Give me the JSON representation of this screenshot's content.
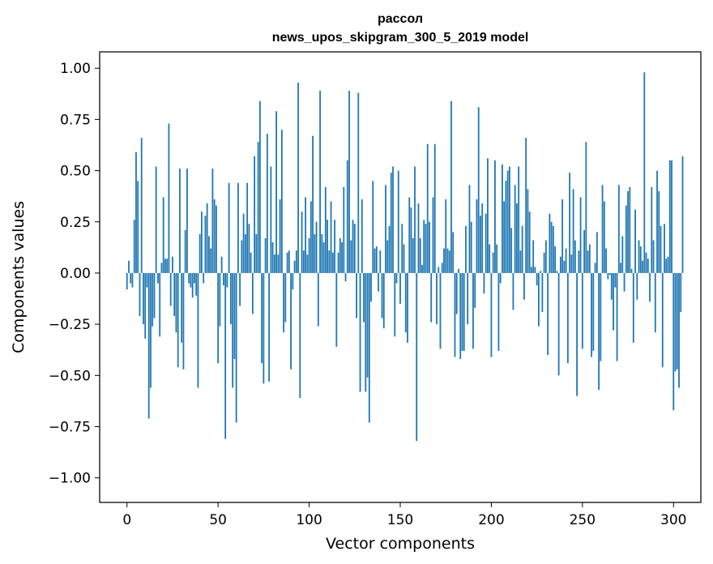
{
  "chart_data": {
    "type": "bar",
    "title_line1": "рассол",
    "title_line2": "news_upos_skipgram_300_5_2019 model",
    "xlabel": "Vector components",
    "ylabel": "Components values",
    "xlim": [
      -15,
      315
    ],
    "ylim": [
      -1.12,
      1.08
    ],
    "xticks": [
      0,
      50,
      100,
      150,
      200,
      250,
      300
    ],
    "xtick_labels": [
      "0",
      "50",
      "100",
      "150",
      "200",
      "250",
      "300"
    ],
    "yticks": [
      1.0,
      0.75,
      0.5,
      0.25,
      0.0,
      -0.25,
      -0.5,
      -0.75,
      -1.0
    ],
    "ytick_labels": [
      "1.00",
      "0.75",
      "0.50",
      "0.25",
      "0.00",
      "−0.25",
      "−0.50",
      "−0.75",
      "−1.00"
    ],
    "bar_color": "#1f77b4",
    "values": [
      -0.08,
      0.06,
      -0.05,
      -0.07,
      0.26,
      0.59,
      0.45,
      -0.21,
      0.66,
      -0.25,
      -0.32,
      -0.07,
      -0.71,
      -0.56,
      -0.26,
      -0.22,
      0.52,
      -0.05,
      -0.31,
      0.05,
      0.37,
      0.07,
      0.07,
      0.73,
      -0.16,
      0.08,
      -0.21,
      -0.29,
      -0.46,
      0.51,
      -0.34,
      -0.47,
      0.21,
      0.51,
      -0.05,
      -0.07,
      -0.12,
      -0.05,
      -0.11,
      -0.56,
      0.19,
      0.3,
      -0.05,
      0.28,
      0.34,
      0.18,
      0.12,
      0.51,
      0.36,
      0.33,
      -0.44,
      -0.26,
      0.08,
      -0.06,
      -0.81,
      -0.07,
      0.44,
      -0.25,
      -0.56,
      -0.42,
      -0.73,
      0.44,
      -0.16,
      0.16,
      0.29,
      0.19,
      0.44,
      0.24,
      0.1,
      -0.2,
      0.57,
      0.19,
      0.64,
      0.84,
      -0.44,
      -0.54,
      0.17,
      0.68,
      -0.53,
      0.52,
      0.15,
      0.09,
      0.79,
      0.09,
      0.36,
      0.7,
      -0.29,
      -0.24,
      0.1,
      0.11,
      -0.47,
      -0.08,
      0.06,
      0.11,
      0.93,
      -0.61,
      0.3,
      0.11,
      0.37,
      0.09,
      0.17,
      0.35,
      0.67,
      0.19,
      0.25,
      -0.26,
      0.89,
      0.19,
      0.15,
      0.42,
      0.26,
      0.11,
      0.35,
      0.1,
      0.26,
      -0.36,
      0.1,
      0.17,
      0.15,
      0.42,
      -0.04,
      0.55,
      0.89,
      0.16,
      0.26,
      0.24,
      -0.22,
      0.88,
      -0.58,
      0.36,
      -0.24,
      -0.58,
      -0.51,
      -0.73,
      -0.14,
      0.45,
      0.12,
      0.13,
      -0.09,
      0.11,
      -0.22,
      -0.27,
      0.43,
      0.16,
      0.23,
      0.49,
      0.52,
      -0.31,
      -0.05,
      0.5,
      -0.15,
      0.24,
      0.14,
      -0.29,
      -0.34,
      0.37,
      0.32,
      0.17,
      0.52,
      -0.82,
      0.34,
      0.17,
      0.04,
      0.26,
      0.24,
      0.63,
      0.25,
      -0.24,
      0.37,
      0.63,
      -0.25,
      0.03,
      -0.37,
      0.05,
      0.12,
      0.36,
      0.12,
      0.11,
      0.84,
      0.2,
      -0.41,
      -0.2,
      0.02,
      -0.42,
      -0.38,
      -0.38,
      0.23,
      -0.25,
      0.43,
      0.25,
      -0.37,
      -0.17,
      0.36,
      0.81,
      0.28,
      0.34,
      -0.1,
      0.29,
      0.56,
      0.14,
      -0.41,
      0.1,
      0.55,
      0.14,
      -0.38,
      -0.05,
      0.53,
      0.35,
      0.45,
      0.5,
      0.52,
      0.22,
      -0.18,
      0.43,
      0.34,
      0.52,
      0.11,
      0.23,
      -0.13,
      0.66,
      0.41,
      0.3,
      0.03,
      0.16,
      0.03,
      -0.06,
      -0.26,
      0.01,
      -0.19,
      0.1,
      0.16,
      -0.4,
      0.29,
      0.25,
      0.23,
      0.13,
      0.01,
      -0.5,
      0.08,
      0.36,
      0.06,
      0.12,
      -0.44,
      0.49,
      0.09,
      0.41,
      0.16,
      -0.6,
      0.11,
      0.37,
      -0.37,
      0.21,
      0.64,
      0.11,
      0.14,
      -0.41,
      -0.38,
      0.05,
      0.2,
      -0.57,
      -0.43,
      0.43,
      0.35,
      0.12,
      -0.03,
      -0.01,
      -0.13,
      -0.28,
      -0.07,
      -0.43,
      0.43,
      0.05,
      0.18,
      -0.09,
      0.33,
      0.4,
      0.42,
      0.02,
      -0.34,
      0.31,
      -0.13,
      0.16,
      0.13,
      0.06,
      0.98,
      0.1,
      0.07,
      -0.14,
      0.42,
      0.16,
      -0.29,
      0.5,
      0.4,
      0.23,
      -0.46,
      0.24,
      0.07,
      0.08,
      0.55,
      0.55,
      -0.67,
      -0.48,
      -0.47,
      -0.56,
      -0.19,
      0.57
    ]
  }
}
